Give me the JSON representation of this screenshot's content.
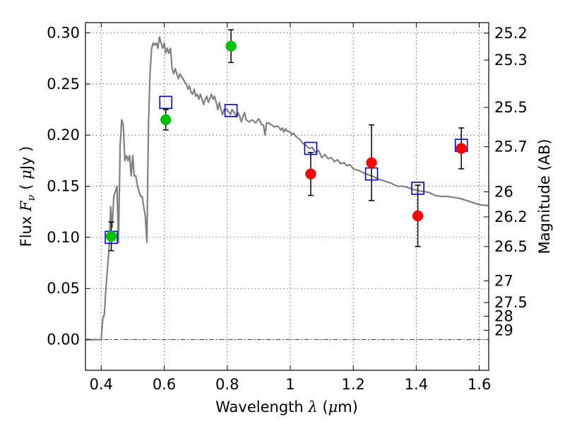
{
  "chart_data": {
    "type": "scatter",
    "xlabel": "Wavelength  λ (μm)",
    "ylabel": "Flux  F_ν  ( μJy )",
    "ylabel_right": "Magnitude (AB)",
    "xlim": [
      0.35,
      1.63
    ],
    "ylim": [
      -0.03,
      0.31
    ],
    "grid": true,
    "x_ticks": [
      0.4,
      0.6,
      0.8,
      1.0,
      1.2,
      1.4,
      1.6
    ],
    "x_tick_labels": [
      "0.4",
      "0.6",
      "0.8",
      "1",
      "1.2",
      "1.4",
      "1.6"
    ],
    "y_ticks": [
      0.0,
      0.05,
      0.1,
      0.15,
      0.2,
      0.25,
      0.3
    ],
    "y_tick_labels": [
      "0.00",
      "0.05",
      "0.10",
      "0.15",
      "0.20",
      "0.25",
      "0.30"
    ],
    "right_ticks": [
      {
        "flux": 0.2997,
        "label": "25.2"
      },
      {
        "flux": 0.2733,
        "label": "25.3"
      },
      {
        "flux": 0.2271,
        "label": "25.5"
      },
      {
        "flux": 0.1886,
        "label": "25.7"
      },
      {
        "flux": 0.1445,
        "label": "26"
      },
      {
        "flux": 0.12,
        "label": "26.2"
      },
      {
        "flux": 0.091,
        "label": "26.5"
      },
      {
        "flux": 0.0574,
        "label": "27"
      },
      {
        "flux": 0.0362,
        "label": "27.5"
      },
      {
        "flux": 0.0229,
        "label": "28"
      },
      {
        "flux": 0.0091,
        "label": "29"
      }
    ],
    "series": [
      {
        "type": "line",
        "color": "#808080",
        "points": [
          [
            0.35,
            0.0
          ],
          [
            0.4,
            0.0
          ],
          [
            0.405,
            0.02
          ],
          [
            0.41,
            0.025
          ],
          [
            0.415,
            0.05
          ],
          [
            0.42,
            0.07
          ],
          [
            0.425,
            0.09
          ],
          [
            0.43,
            0.13
          ],
          [
            0.435,
            0.11
          ],
          [
            0.44,
            0.14
          ],
          [
            0.445,
            0.145
          ],
          [
            0.45,
            0.15
          ],
          [
            0.455,
            0.095
          ],
          [
            0.46,
            0.19
          ],
          [
            0.465,
            0.215
          ],
          [
            0.47,
            0.21
          ],
          [
            0.475,
            0.175
          ],
          [
            0.48,
            0.18
          ],
          [
            0.485,
            0.175
          ],
          [
            0.49,
            0.18
          ],
          [
            0.495,
            0.16
          ],
          [
            0.5,
            0.18
          ],
          [
            0.505,
            0.16
          ],
          [
            0.51,
            0.16
          ],
          [
            0.515,
            0.15
          ],
          [
            0.52,
            0.145
          ],
          [
            0.525,
            0.14
          ],
          [
            0.53,
            0.14
          ],
          [
            0.535,
            0.13
          ],
          [
            0.54,
            0.12
          ],
          [
            0.545,
            0.095
          ],
          [
            0.55,
            0.21
          ],
          [
            0.555,
            0.26
          ],
          [
            0.56,
            0.285
          ],
          [
            0.565,
            0.29
          ],
          [
            0.57,
            0.288
          ],
          [
            0.575,
            0.29
          ],
          [
            0.58,
            0.285
          ],
          [
            0.585,
            0.296
          ],
          [
            0.59,
            0.29
          ],
          [
            0.595,
            0.285
          ],
          [
            0.6,
            0.29
          ],
          [
            0.605,
            0.28
          ],
          [
            0.61,
            0.285
          ],
          [
            0.615,
            0.28
          ],
          [
            0.62,
            0.285
          ],
          [
            0.625,
            0.265
          ],
          [
            0.63,
            0.26
          ],
          [
            0.635,
            0.265
          ],
          [
            0.64,
            0.26
          ],
          [
            0.645,
            0.255
          ],
          [
            0.65,
            0.26
          ],
          [
            0.655,
            0.257
          ],
          [
            0.66,
            0.255
          ],
          [
            0.665,
            0.252
          ],
          [
            0.67,
            0.25
          ],
          [
            0.675,
            0.245
          ],
          [
            0.68,
            0.248
          ],
          [
            0.685,
            0.242
          ],
          [
            0.69,
            0.24
          ],
          [
            0.695,
            0.245
          ],
          [
            0.7,
            0.238
          ],
          [
            0.705,
            0.24
          ],
          [
            0.71,
            0.235
          ],
          [
            0.715,
            0.24
          ],
          [
            0.72,
            0.235
          ],
          [
            0.725,
            0.23
          ],
          [
            0.73,
            0.235
          ],
          [
            0.735,
            0.238
          ],
          [
            0.74,
            0.232
          ],
          [
            0.745,
            0.236
          ],
          [
            0.75,
            0.24
          ],
          [
            0.755,
            0.235
          ],
          [
            0.76,
            0.238
          ],
          [
            0.765,
            0.232
          ],
          [
            0.77,
            0.225
          ],
          [
            0.775,
            0.232
          ],
          [
            0.78,
            0.225
          ],
          [
            0.785,
            0.22
          ],
          [
            0.79,
            0.225
          ],
          [
            0.8,
            0.225
          ],
          [
            0.81,
            0.22
          ],
          [
            0.815,
            0.225
          ],
          [
            0.82,
            0.223
          ],
          [
            0.83,
            0.218
          ],
          [
            0.835,
            0.222
          ],
          [
            0.84,
            0.218
          ],
          [
            0.845,
            0.213
          ],
          [
            0.85,
            0.218
          ],
          [
            0.855,
            0.222
          ],
          [
            0.86,
            0.215
          ],
          [
            0.87,
            0.213
          ],
          [
            0.88,
            0.215
          ],
          [
            0.89,
            0.212
          ],
          [
            0.9,
            0.216
          ],
          [
            0.91,
            0.21
          ],
          [
            0.915,
            0.21
          ],
          [
            0.92,
            0.2
          ],
          [
            0.925,
            0.212
          ],
          [
            0.93,
            0.212
          ],
          [
            0.94,
            0.21
          ],
          [
            0.95,
            0.208
          ],
          [
            0.96,
            0.209
          ],
          [
            0.97,
            0.205
          ],
          [
            0.975,
            0.207
          ],
          [
            0.98,
            0.203
          ],
          [
            0.985,
            0.206
          ],
          [
            0.99,
            0.204
          ],
          [
            1.0,
            0.203
          ],
          [
            1.005,
            0.2
          ],
          [
            1.01,
            0.202
          ],
          [
            1.02,
            0.198
          ],
          [
            1.03,
            0.196
          ],
          [
            1.04,
            0.192
          ],
          [
            1.05,
            0.19
          ],
          [
            1.06,
            0.187
          ],
          [
            1.07,
            0.188
          ],
          [
            1.08,
            0.183
          ],
          [
            1.09,
            0.185
          ],
          [
            1.1,
            0.178
          ],
          [
            1.11,
            0.181
          ],
          [
            1.12,
            0.177
          ],
          [
            1.13,
            0.178
          ],
          [
            1.14,
            0.174
          ],
          [
            1.15,
            0.176
          ],
          [
            1.16,
            0.172
          ],
          [
            1.17,
            0.173
          ],
          [
            1.18,
            0.17
          ],
          [
            1.19,
            0.171
          ],
          [
            1.2,
            0.167
          ],
          [
            1.22,
            0.165
          ],
          [
            1.24,
            0.162
          ],
          [
            1.26,
            0.16
          ],
          [
            1.28,
            0.157
          ],
          [
            1.3,
            0.155
          ],
          [
            1.32,
            0.153
          ],
          [
            1.34,
            0.15
          ],
          [
            1.36,
            0.15
          ],
          [
            1.38,
            0.148
          ],
          [
            1.4,
            0.146
          ],
          [
            1.42,
            0.145
          ],
          [
            1.44,
            0.144
          ],
          [
            1.46,
            0.141
          ],
          [
            1.48,
            0.14
          ],
          [
            1.5,
            0.14
          ],
          [
            1.52,
            0.139
          ],
          [
            1.54,
            0.138
          ],
          [
            1.56,
            0.136
          ],
          [
            1.58,
            0.134
          ],
          [
            1.6,
            0.132
          ],
          [
            1.63,
            0.131
          ]
        ]
      },
      {
        "type": "squares",
        "color": "#0000cc",
        "points": [
          [
            0.432,
            0.1
          ],
          [
            0.605,
            0.232
          ],
          [
            0.812,
            0.224
          ],
          [
            1.065,
            0.187
          ],
          [
            1.258,
            0.162
          ],
          [
            1.405,
            0.148
          ],
          [
            1.543,
            0.19
          ]
        ]
      },
      {
        "type": "points_with_errors",
        "color": "#00c000",
        "points": [
          {
            "x": 0.432,
            "y": 0.101,
            "err": 0.014
          },
          {
            "x": 0.605,
            "y": 0.215,
            "err": 0.01
          },
          {
            "x": 0.812,
            "y": 0.287,
            "err": 0.016
          }
        ]
      },
      {
        "type": "points_with_errors",
        "color": "#ff0000",
        "points": [
          {
            "x": 1.065,
            "y": 0.162,
            "err": 0.021
          },
          {
            "x": 1.258,
            "y": 0.173,
            "err": 0.037
          },
          {
            "x": 1.405,
            "y": 0.121,
            "err": 0.03
          },
          {
            "x": 1.543,
            "y": 0.187,
            "err": 0.02
          }
        ]
      }
    ]
  }
}
